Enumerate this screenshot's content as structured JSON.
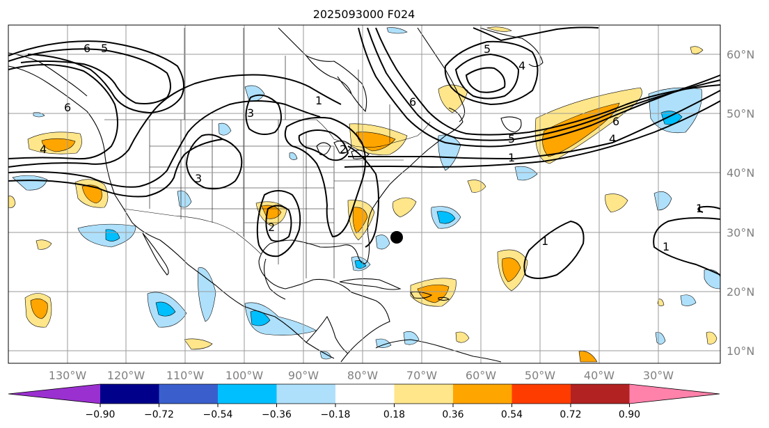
{
  "title": "2025093000 F024",
  "map": {
    "longitude_labels": [
      "130°W",
      "120°W",
      "110°W",
      "100°W",
      "90°W",
      "80°W",
      "70°W",
      "60°W",
      "50°W",
      "40°W",
      "30°W"
    ],
    "latitude_labels": [
      "60°N",
      "50°N",
      "40°N",
      "30°N",
      "20°N",
      "10°N"
    ],
    "contour_labels": [
      "6",
      "5",
      "6",
      "4",
      "3",
      "1",
      "3",
      "2",
      "2",
      "5",
      "4",
      "6",
      "5",
      "1",
      "6",
      "4",
      "1",
      "1",
      "1"
    ],
    "marker": "filled-circle"
  },
  "colorbar": {
    "tick_labels": [
      "−0.90",
      "−0.72",
      "−0.54",
      "−0.36",
      "−0.18",
      "0.18",
      "0.36",
      "0.54",
      "0.72",
      "0.90"
    ],
    "colors": [
      "#9b30d0",
      "#00008b",
      "#3a5fcd",
      "#00bfff",
      "#aee0fb",
      "#ffffff",
      "#ffe68a",
      "#ffa500",
      "#ff3c00",
      "#b22222",
      "#ff82ab"
    ]
  }
}
